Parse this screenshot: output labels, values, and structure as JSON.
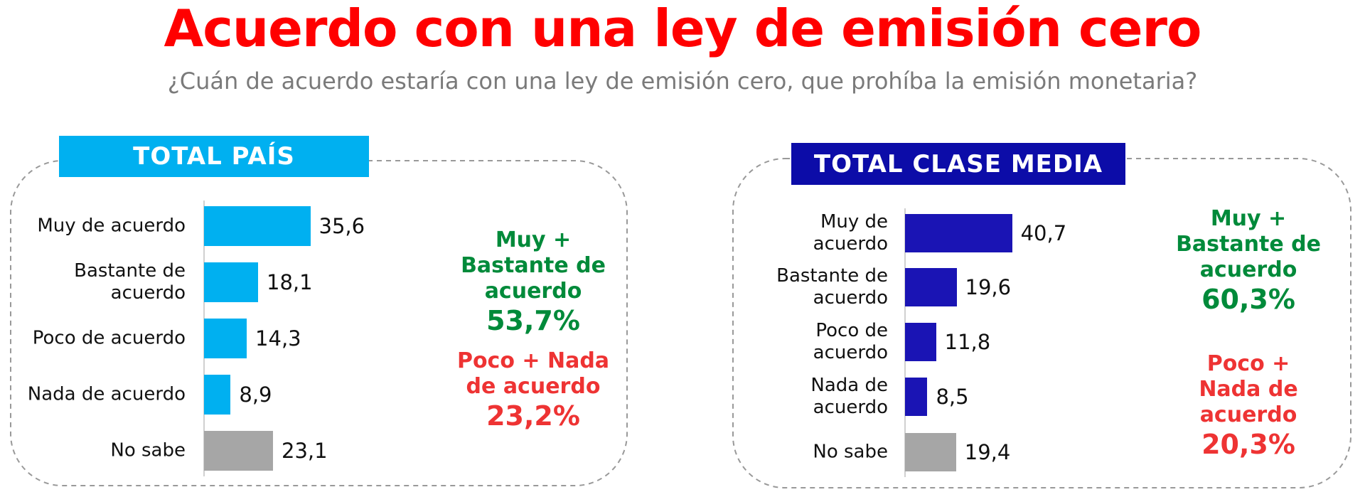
{
  "title": "Acuerdo con una ley de emisión cero",
  "subtitle": "¿Cuán de acuerdo estaría con una ley de emisión cero, que prohíba la emisión monetaria?",
  "chart_data": [
    {
      "type": "bar",
      "orientation": "horizontal",
      "title": "TOTAL PAÍS",
      "header_color": "#00b0f0",
      "categories": [
        "Muy de acuerdo",
        "Bastante de\nacuerdo",
        "Poco de acuerdo",
        "Nada de acuerdo",
        "No sabe"
      ],
      "values": [
        35.6,
        18.1,
        14.3,
        8.9,
        23.1
      ],
      "value_labels": [
        "35,6",
        "18,1",
        "14,3",
        "8,9",
        "23,1"
      ],
      "colors": [
        "#00b0f0",
        "#00b0f0",
        "#00b0f0",
        "#00b0f0",
        "#a6a6a6"
      ],
      "xlim": [
        0,
        100
      ],
      "annotations": [
        {
          "label": "Muy +\nBastante de\nacuerdo",
          "value": "53,7%",
          "color": "#008a3a"
        },
        {
          "label": "Poco + Nada\nde acuerdo",
          "value": "23,2%",
          "color": "#ee3333"
        }
      ]
    },
    {
      "type": "bar",
      "orientation": "horizontal",
      "title": "TOTAL CLASE MEDIA",
      "header_color": "#0c0ca8",
      "categories": [
        "Muy de\nacuerdo",
        "Bastante de\nacuerdo",
        "Poco de\nacuerdo",
        "Nada de\nacuerdo",
        "No sabe"
      ],
      "values": [
        40.7,
        19.6,
        11.8,
        8.5,
        19.4
      ],
      "value_labels": [
        "40,7",
        "19,6",
        "11,8",
        "8,5",
        "19,4"
      ],
      "colors": [
        "#1a14b4",
        "#1a14b4",
        "#1a14b4",
        "#1a14b4",
        "#a6a6a6"
      ],
      "xlim": [
        0,
        100
      ],
      "annotations": [
        {
          "label": "Muy +\nBastante de\nacuerdo",
          "value": "60,3%",
          "color": "#008a3a"
        },
        {
          "label": "Poco +\nNada de\nacuerdo",
          "value": "20,3%",
          "color": "#ee3333"
        }
      ]
    }
  ]
}
